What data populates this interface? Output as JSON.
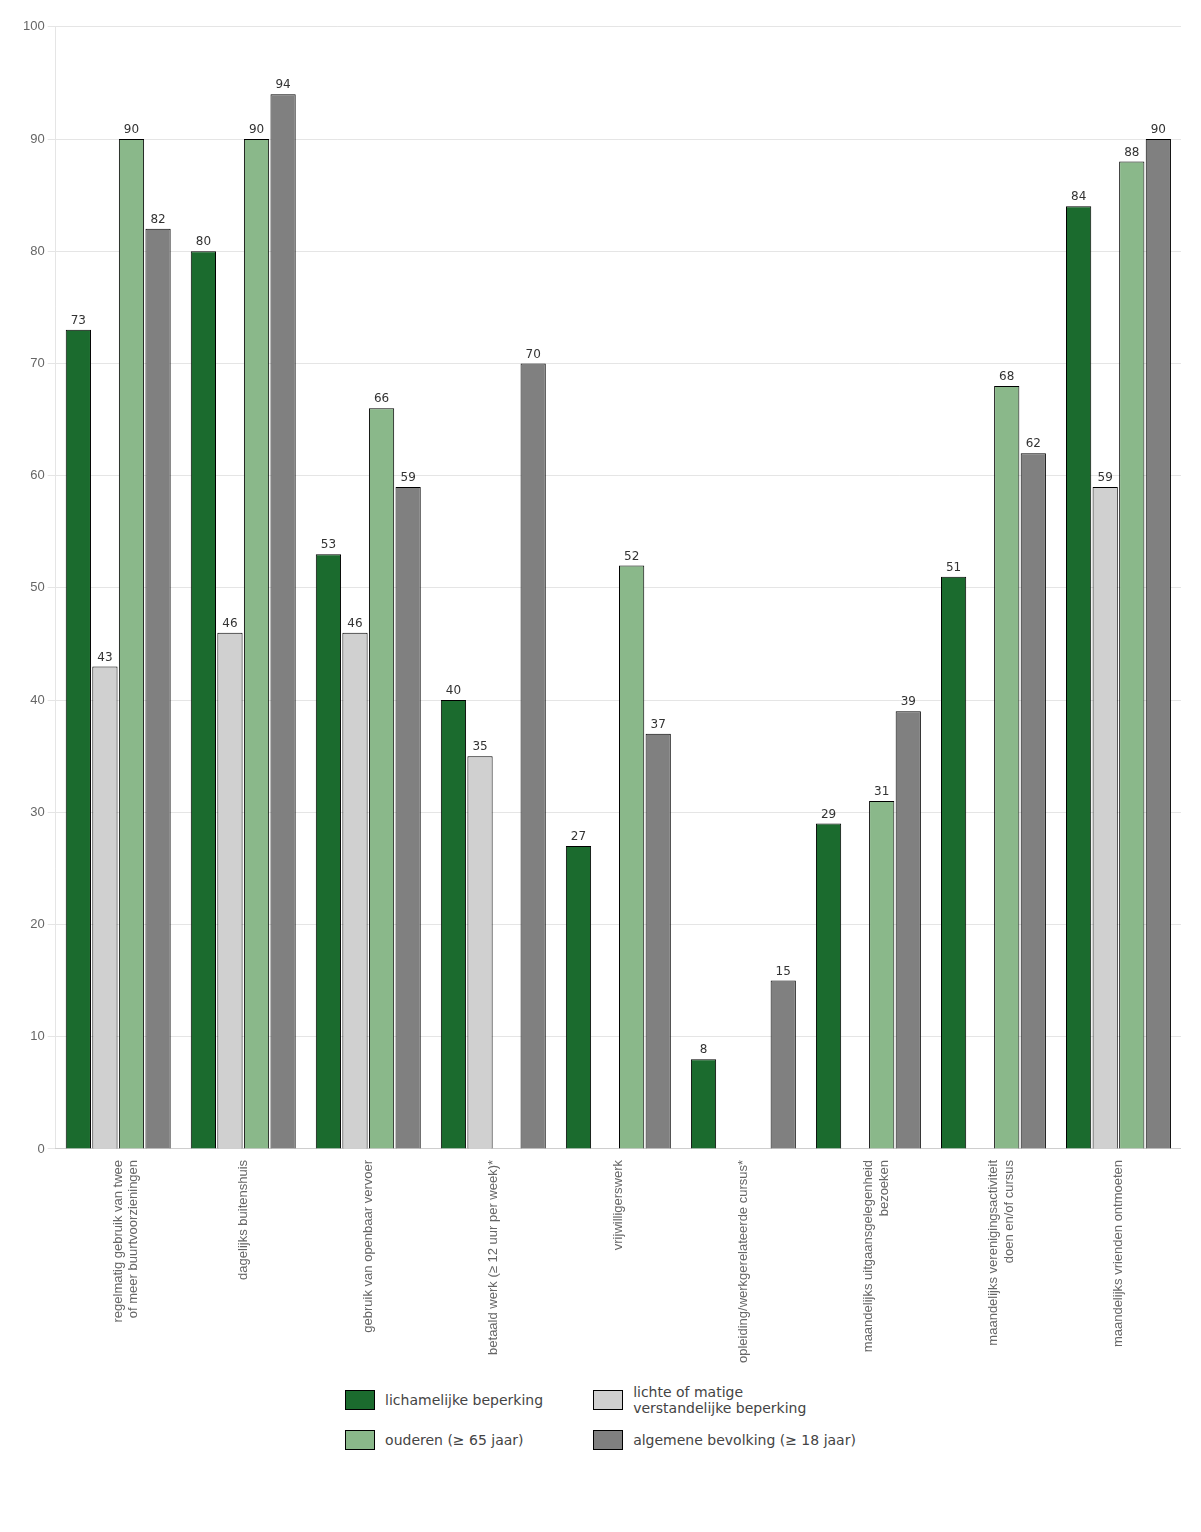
{
  "chart_data": {
    "type": "bar",
    "categories": [
      "regelmatig gebruik van twee\nof meer buurtvoorzieningen",
      "dagelijks buitenshuis",
      "gebruik van openbaar vervoer",
      "betaald werk (≥ 12 uur per week)*",
      "vrijwilligerswerk",
      "opleiding/werkgerelateerde cursus*",
      "maandelijks uitgaansgelegenheid\nbezoeken",
      "maandelijks verenigingsactiviteit\ndoen en/of cursus",
      "maandelijks vrienden ontmoeten"
    ],
    "series": [
      {
        "name": "lichamelijke beperking",
        "color": "#1b6b2e",
        "values": [
          73,
          80,
          53,
          40,
          27,
          8,
          29,
          51,
          84
        ]
      },
      {
        "name": "lichte of matige\nverstandelijke beperking",
        "color": "#d0d0d0",
        "values": [
          43,
          46,
          46,
          35,
          null,
          null,
          null,
          null,
          59
        ]
      },
      {
        "name": "ouderen (≥ 65 jaar)",
        "color": "#8ab88a",
        "values": [
          90,
          90,
          66,
          null,
          52,
          null,
          31,
          68,
          88
        ]
      },
      {
        "name": "algemene bevolking (≥ 18 jaar)",
        "color": "#808080",
        "values": [
          82,
          94,
          59,
          70,
          37,
          15,
          39,
          62,
          90
        ]
      }
    ],
    "ylim": [
      0,
      100
    ],
    "yticks": [
      0,
      10,
      20,
      30,
      40,
      50,
      60,
      70,
      80,
      90,
      100
    ],
    "grid": true,
    "legend": "bottom",
    "data_labels": true
  }
}
